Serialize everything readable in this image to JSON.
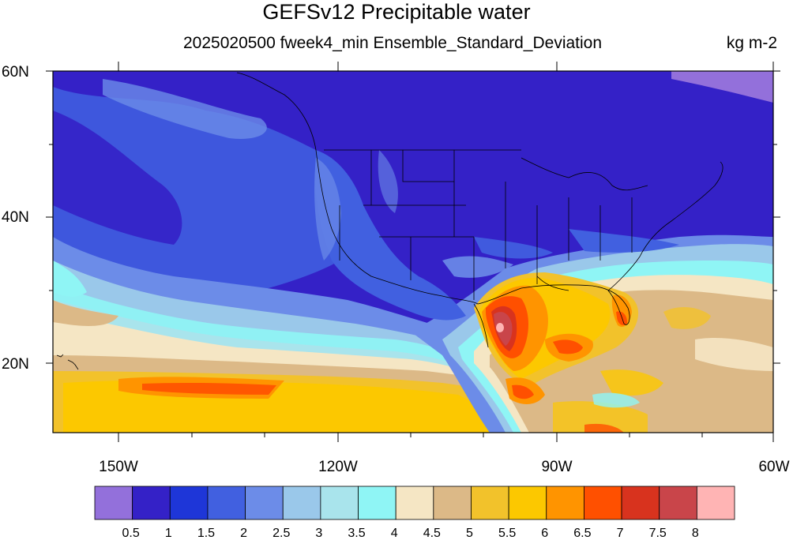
{
  "title": "GEFSv12 Precipitable water",
  "subtitle": "2025020500 fweek4_min Ensemble_Standard_Deviation",
  "units": "kg m-2",
  "lat_labels": [
    "60N",
    "40N",
    "20N"
  ],
  "lon_labels": [
    "150W",
    "120W",
    "90W",
    "60W"
  ],
  "colorbar": {
    "colors": [
      "#9370db",
      "#3421c7",
      "#1e36d8",
      "#4160e0",
      "#6c8ce8",
      "#9ac8ea",
      "#a9e4ec",
      "#8ff5f5",
      "#f5e6c4",
      "#dcb987",
      "#f2c22b",
      "#fcc800",
      "#ff9400",
      "#ff5000",
      "#d8331e",
      "#c9454a",
      "#ffb4b4"
    ],
    "labels": [
      "0.5",
      "1",
      "1.5",
      "2",
      "2.5",
      "3",
      "3.5",
      "4",
      "4.5",
      "5",
      "5.5",
      "6",
      "6.5",
      "7",
      "7.5",
      "8"
    ]
  }
}
